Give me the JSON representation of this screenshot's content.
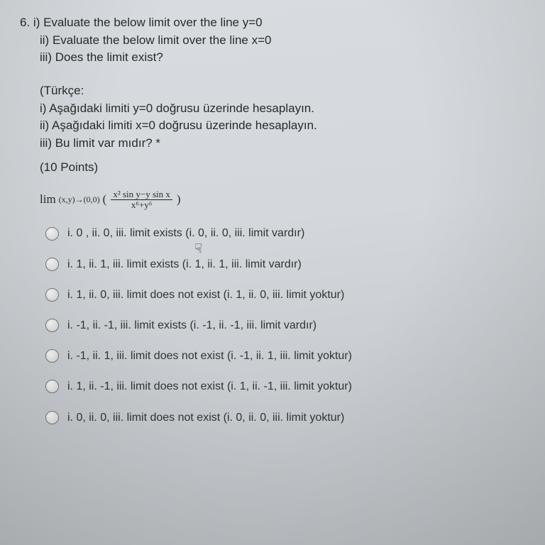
{
  "question": {
    "number": "6.",
    "i": "i) Evaluate the below limit over the line y=0",
    "ii": "ii) Evaluate the below limit over the line x=0",
    "iii": "iii) Does the limit exist?"
  },
  "translation": {
    "header": "(Türkçe:",
    "i": "i) Aşağıdaki limiti y=0 doğrusu üzerinde hesaplayın.",
    "ii": "ii) Aşağıdaki limiti x=0 doğrusu üzerinde hesaplayın.",
    "iii": "iii) Bu limit var mıdır? *"
  },
  "points": "(10 Points)",
  "formula": {
    "lim": "lim",
    "sub": "(x,y)→(0,0)",
    "open": "(",
    "num": "x² sin y−y sin x",
    "den": "x⁶+y⁶",
    "close": ")"
  },
  "options": [
    "i. 0 , ii. 0, iii. limit exists (i. 0, ii. 0, iii. limit vardır)",
    "i. 1, ii. 1, iii. limit exists (i. 1, ii. 1, iii. limit vardır)",
    "i. 1, ii. 0, iii. limit does not exist (i. 1, ii. 0, iii. limit yoktur)",
    "i. -1, ii. -1, iii. limit exists (i. -1, ii. -1, iii. limit vardır)",
    "i. -1, ii. 1, iii. limit does not exist (i. -1, ii. 1, iii. limit yoktur)",
    "i. 1, ii. -1, iii. limit does not exist (i. 1, ii. -1, iii. limit yoktur)",
    "i. 0, ii. 0, iii. limit does not exist (i. 0, ii. 0, iii. limit yoktur)"
  ],
  "cursor_on_option": 0,
  "colors": {
    "text": "#2a2a2a",
    "radio_border": "#777777"
  }
}
